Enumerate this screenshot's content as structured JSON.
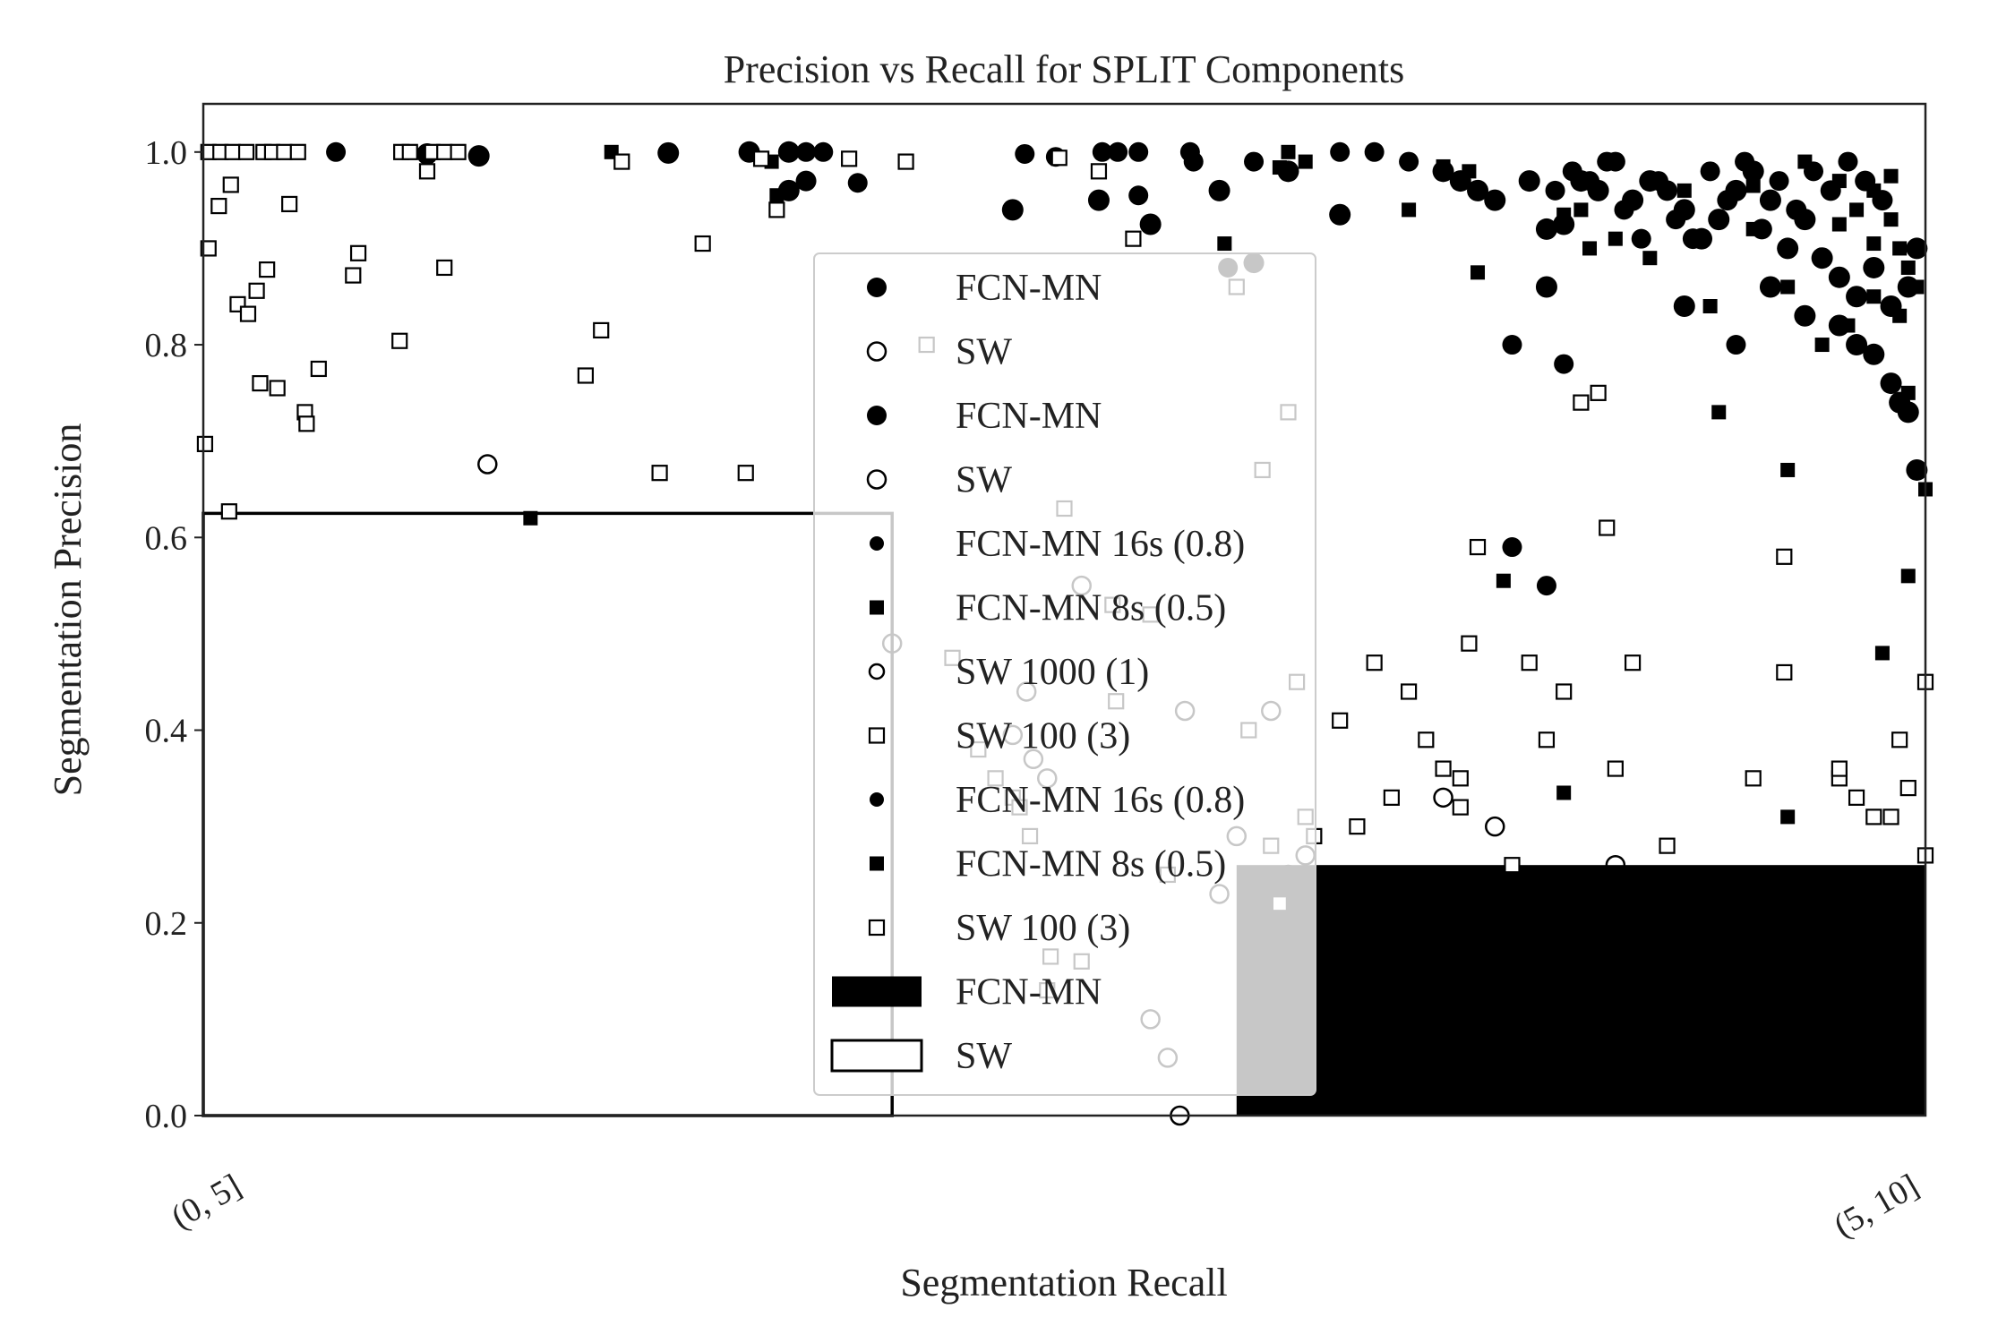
{
  "chart_data": {
    "type": "scatter",
    "title": "Precision vs Recall for SPLIT Components",
    "xlabel": "Segmentation Recall",
    "ylabel": "Segmentation Precision",
    "ylim": [
      0,
      1.05
    ],
    "yticks": [
      "0.0",
      "0.2",
      "0.4",
      "0.6",
      "0.8",
      "1.0"
    ],
    "categories": [
      "(0, 5]",
      "(5, 10]"
    ],
    "grid": false,
    "legend_placement": "center",
    "bars": [
      {
        "name": "FCN-MN",
        "color": "#000000",
        "filled": true,
        "x0": 0.6,
        "x1": 1.0,
        "value": 0.26
      },
      {
        "name": "SW",
        "color": "#000000",
        "filled": false,
        "x0": 0.0,
        "x1": 0.4,
        "value": 0.625
      }
    ],
    "legend": [
      {
        "label": "FCN-MN",
        "marker": "circle-filled-lg"
      },
      {
        "label": "SW",
        "marker": "circle-open"
      },
      {
        "label": "FCN-MN",
        "marker": "circle-filled-lg"
      },
      {
        "label": "SW",
        "marker": "circle-open"
      },
      {
        "label": "FCN-MN 16s (0.8)",
        "marker": "circle-filled-sm"
      },
      {
        "label": "FCN-MN 8s (0.5)",
        "marker": "square-filled"
      },
      {
        "label": "SW 1000 (1)",
        "marker": "circle-open-sm"
      },
      {
        "label": "SW 100 (3)",
        "marker": "square-open"
      },
      {
        "label": "FCN-MN 16s (0.8)",
        "marker": "circle-filled-sm"
      },
      {
        "label": "FCN-MN 8s (0.5)",
        "marker": "square-filled"
      },
      {
        "label": "SW 100 (3)",
        "marker": "square-open"
      },
      {
        "label": "FCN-MN",
        "marker": "patch-filled"
      },
      {
        "label": "SW",
        "marker": "patch-open"
      }
    ],
    "series": [
      {
        "name": "FCN-MN 16s (0.8)",
        "marker": "circle-filled",
        "points": [
          [
            0.077,
            1.0,
            0.8
          ],
          [
            0.13,
            0.998,
            1.0
          ],
          [
            0.16,
            0.996,
            1.0
          ],
          [
            0.27,
            0.999,
            1.0
          ],
          [
            0.317,
            1.0,
            1.0
          ],
          [
            0.34,
            1.0,
            1.0
          ],
          [
            0.35,
            1.0,
            0.8
          ],
          [
            0.36,
            1.0,
            0.8
          ],
          [
            0.34,
            0.96,
            1.0
          ],
          [
            0.35,
            0.97,
            0.9
          ],
          [
            0.38,
            0.968,
            0.8
          ],
          [
            0.477,
            0.998,
            0.8
          ],
          [
            0.495,
            0.995,
            0.8
          ],
          [
            0.522,
            1.0,
            0.8
          ],
          [
            0.531,
            1.0,
            0.8
          ],
          [
            0.543,
            1.0,
            0.8
          ],
          [
            0.47,
            0.94,
            1.0
          ],
          [
            0.52,
            0.95,
            1.0
          ],
          [
            0.55,
            0.925,
            1.0
          ],
          [
            0.543,
            0.955,
            0.8
          ],
          [
            0.573,
            1.0,
            0.8
          ],
          [
            0.575,
            0.99,
            0.8
          ],
          [
            0.59,
            0.96,
            1.0
          ],
          [
            0.61,
            0.99,
            0.8
          ],
          [
            0.63,
            0.98,
            1.0
          ],
          [
            0.66,
            0.935,
            1.0
          ],
          [
            0.66,
            1.0,
            0.8
          ],
          [
            0.68,
            1.0,
            0.8
          ],
          [
            0.7,
            0.99,
            0.8
          ],
          [
            0.72,
            0.98,
            1.0
          ],
          [
            0.73,
            0.97,
            1.0
          ],
          [
            0.74,
            0.96,
            1.0
          ],
          [
            0.75,
            0.95,
            1.0
          ],
          [
            0.77,
            0.97,
            1.0
          ],
          [
            0.78,
            0.92,
            1.0
          ],
          [
            0.79,
            0.925,
            1.0
          ],
          [
            0.8,
            0.97,
            1.0
          ],
          [
            0.81,
            0.96,
            1.0
          ],
          [
            0.82,
            0.99,
            0.8
          ],
          [
            0.83,
            0.95,
            1.0
          ],
          [
            0.84,
            0.97,
            1.0
          ],
          [
            0.85,
            0.96,
            0.9
          ],
          [
            0.86,
            0.94,
            1.0
          ],
          [
            0.87,
            0.91,
            1.0
          ],
          [
            0.88,
            0.93,
            1.0
          ],
          [
            0.89,
            0.96,
            1.0
          ],
          [
            0.9,
            0.98,
            1.0
          ],
          [
            0.91,
            0.95,
            1.0
          ],
          [
            0.92,
            0.9,
            1.0
          ],
          [
            0.93,
            0.93,
            1.0
          ],
          [
            0.94,
            0.89,
            1.0
          ],
          [
            0.95,
            0.87,
            1.0
          ],
          [
            0.96,
            0.85,
            1.0
          ],
          [
            0.97,
            0.88,
            1.0
          ],
          [
            0.98,
            0.84,
            1.0
          ],
          [
            0.99,
            0.86,
            1.0
          ],
          [
            0.995,
            0.9,
            1.0
          ],
          [
            0.91,
            0.86,
            1.0
          ],
          [
            0.93,
            0.83,
            1.0
          ],
          [
            0.95,
            0.82,
            1.0
          ],
          [
            0.96,
            0.8,
            1.0
          ],
          [
            0.97,
            0.79,
            1.0
          ],
          [
            0.98,
            0.76,
            1.0
          ],
          [
            0.985,
            0.74,
            1.0
          ],
          [
            0.99,
            0.73,
            1.0
          ],
          [
            0.89,
            0.8,
            0.8
          ],
          [
            0.86,
            0.84,
            1.0
          ],
          [
            0.78,
            0.86,
            1.0
          ],
          [
            0.76,
            0.8,
            0.8
          ],
          [
            0.79,
            0.78,
            0.8
          ],
          [
            0.975,
            0.95,
            0.9
          ],
          [
            0.965,
            0.97,
            0.9
          ],
          [
            0.955,
            0.99,
            0.8
          ],
          [
            0.945,
            0.96,
            0.9
          ],
          [
            0.935,
            0.98,
            0.8
          ],
          [
            0.925,
            0.94,
            0.9
          ],
          [
            0.915,
            0.97,
            0.8
          ],
          [
            0.905,
            0.92,
            0.9
          ],
          [
            0.895,
            0.99,
            0.8
          ],
          [
            0.885,
            0.95,
            0.9
          ],
          [
            0.875,
            0.98,
            0.8
          ],
          [
            0.865,
            0.91,
            0.9
          ],
          [
            0.855,
            0.93,
            0.8
          ],
          [
            0.845,
            0.97,
            0.8
          ],
          [
            0.835,
            0.91,
            0.8
          ],
          [
            0.825,
            0.94,
            0.8
          ],
          [
            0.815,
            0.99,
            0.8
          ],
          [
            0.805,
            0.97,
            0.8
          ],
          [
            0.795,
            0.98,
            0.8
          ],
          [
            0.785,
            0.96,
            0.8
          ],
          [
            0.995,
            0.67,
            1.0
          ],
          [
            0.76,
            0.59,
            0.8
          ],
          [
            0.78,
            0.55,
            0.8
          ],
          [
            0.595,
            0.88,
            0.8
          ],
          [
            0.61,
            0.885,
            0.9
          ]
        ]
      },
      {
        "name": "FCN-MN 8s (0.5)",
        "marker": "square-filled",
        "points": [
          [
            0.237,
            1.0
          ],
          [
            0.33,
            0.99
          ],
          [
            0.333,
            0.955
          ],
          [
            0.593,
            0.905
          ],
          [
            0.625,
            0.984
          ],
          [
            0.63,
            1.0
          ],
          [
            0.64,
            0.99
          ],
          [
            0.7,
            0.94
          ],
          [
            0.72,
            0.985
          ],
          [
            0.735,
            0.98
          ],
          [
            0.74,
            0.875
          ],
          [
            0.77,
            0.97
          ],
          [
            0.79,
            0.935
          ],
          [
            0.8,
            0.94
          ],
          [
            0.805,
            0.9
          ],
          [
            0.82,
            0.91
          ],
          [
            0.84,
            0.89
          ],
          [
            0.86,
            0.84
          ],
          [
            0.875,
            0.84
          ],
          [
            0.9,
            0.92
          ],
          [
            0.92,
            0.86
          ],
          [
            0.94,
            0.8
          ],
          [
            0.955,
            0.82
          ],
          [
            0.97,
            0.85
          ],
          [
            0.985,
            0.83
          ],
          [
            0.99,
            0.75
          ],
          [
            1.0,
            0.65
          ],
          [
            0.93,
            0.99
          ],
          [
            0.95,
            0.97
          ],
          [
            0.96,
            0.94
          ],
          [
            0.97,
            0.96
          ],
          [
            0.98,
            0.93
          ],
          [
            0.985,
            0.9
          ],
          [
            0.99,
            0.88
          ],
          [
            0.995,
            0.86
          ],
          [
            0.88,
            0.73
          ],
          [
            0.92,
            0.67
          ],
          [
            0.99,
            0.56
          ],
          [
            0.975,
            0.48
          ],
          [
            0.755,
            0.555
          ],
          [
            0.79,
            0.335
          ],
          [
            0.92,
            0.31
          ],
          [
            0.19,
            0.62
          ],
          [
            0.86,
            0.96
          ],
          [
            0.9,
            0.965
          ],
          [
            0.95,
            0.925
          ],
          [
            0.97,
            0.905
          ],
          [
            0.98,
            0.975
          ]
        ]
      },
      {
        "name": "SW 1000 (1)",
        "marker": "circle-open",
        "points": [
          [
            0.165,
            0.676
          ],
          [
            0.4,
            0.49
          ],
          [
            0.47,
            0.395
          ],
          [
            0.478,
            0.44
          ],
          [
            0.482,
            0.37
          ],
          [
            0.49,
            0.35
          ],
          [
            0.51,
            0.55
          ],
          [
            0.55,
            0.1
          ],
          [
            0.56,
            0.06
          ],
          [
            0.567,
            0.0
          ],
          [
            0.57,
            0.42
          ],
          [
            0.59,
            0.23
          ],
          [
            0.6,
            0.29
          ],
          [
            0.62,
            0.42
          ],
          [
            0.64,
            0.27
          ],
          [
            0.72,
            0.33
          ],
          [
            0.75,
            0.3
          ],
          [
            0.82,
            0.26
          ],
          [
            0.63,
            0.25
          ]
        ]
      },
      {
        "name": "SW 100 (3)",
        "marker": "square-open",
        "points": [
          [
            0.003,
            1.0
          ],
          [
            0.01,
            1.0
          ],
          [
            0.017,
            1.0
          ],
          [
            0.025,
            1.0
          ],
          [
            0.035,
            1.0
          ],
          [
            0.04,
            1.0
          ],
          [
            0.047,
            1.0
          ],
          [
            0.055,
            1.0
          ],
          [
            0.115,
            1.0
          ],
          [
            0.12,
            1.0
          ],
          [
            0.133,
            1.0
          ],
          [
            0.14,
            1.0
          ],
          [
            0.148,
            1.0
          ],
          [
            0.003,
            0.9
          ],
          [
            0.009,
            0.944
          ],
          [
            0.016,
            0.966
          ],
          [
            0.02,
            0.842
          ],
          [
            0.026,
            0.832
          ],
          [
            0.031,
            0.856
          ],
          [
            0.037,
            0.878
          ],
          [
            0.05,
            0.946
          ],
          [
            0.033,
            0.76
          ],
          [
            0.043,
            0.755
          ],
          [
            0.059,
            0.73
          ],
          [
            0.06,
            0.718
          ],
          [
            0.067,
            0.775
          ],
          [
            0.087,
            0.872
          ],
          [
            0.09,
            0.895
          ],
          [
            0.114,
            0.804
          ],
          [
            0.13,
            0.98
          ],
          [
            0.14,
            0.88
          ],
          [
            0.001,
            0.697
          ],
          [
            0.015,
            0.627
          ],
          [
            0.222,
            0.768
          ],
          [
            0.231,
            0.815
          ],
          [
            0.243,
            0.99
          ],
          [
            0.265,
            0.667
          ],
          [
            0.29,
            0.905
          ],
          [
            0.315,
            0.667
          ],
          [
            0.324,
            0.993
          ],
          [
            0.333,
            0.94
          ],
          [
            0.375,
            0.993
          ],
          [
            0.408,
            0.99
          ],
          [
            0.42,
            0.8
          ],
          [
            0.435,
            0.475
          ],
          [
            0.45,
            0.38
          ],
          [
            0.46,
            0.35
          ],
          [
            0.47,
            0.33
          ],
          [
            0.474,
            0.32
          ],
          [
            0.48,
            0.29
          ],
          [
            0.492,
            0.165
          ],
          [
            0.497,
            0.994
          ],
          [
            0.49,
            0.13
          ],
          [
            0.5,
            0.63
          ],
          [
            0.51,
            0.16
          ],
          [
            0.52,
            0.98
          ],
          [
            0.528,
            0.53
          ],
          [
            0.53,
            0.43
          ],
          [
            0.54,
            0.91
          ],
          [
            0.55,
            0.52
          ],
          [
            0.56,
            0.25
          ],
          [
            0.6,
            0.86
          ],
          [
            0.607,
            0.4
          ],
          [
            0.615,
            0.67
          ],
          [
            0.625,
            0.22
          ],
          [
            0.63,
            0.73
          ],
          [
            0.64,
            0.31
          ],
          [
            0.645,
            0.29
          ],
          [
            0.635,
            0.45
          ],
          [
            0.62,
            0.28
          ],
          [
            0.66,
            0.41
          ],
          [
            0.67,
            0.3
          ],
          [
            0.68,
            0.47
          ],
          [
            0.69,
            0.33
          ],
          [
            0.7,
            0.44
          ],
          [
            0.71,
            0.39
          ],
          [
            0.72,
            0.36
          ],
          [
            0.73,
            0.35
          ],
          [
            0.735,
            0.49
          ],
          [
            0.74,
            0.59
          ],
          [
            0.73,
            0.32
          ],
          [
            0.76,
            0.26
          ],
          [
            0.77,
            0.47
          ],
          [
            0.78,
            0.39
          ],
          [
            0.79,
            0.44
          ],
          [
            0.8,
            0.74
          ],
          [
            0.81,
            0.75
          ],
          [
            0.815,
            0.61
          ],
          [
            0.82,
            0.36
          ],
          [
            0.83,
            0.47
          ],
          [
            0.85,
            0.28
          ],
          [
            0.9,
            0.35
          ],
          [
            0.918,
            0.58
          ],
          [
            0.918,
            0.46
          ],
          [
            0.95,
            0.35
          ],
          [
            0.96,
            0.33
          ],
          [
            0.97,
            0.31
          ],
          [
            0.98,
            0.31
          ],
          [
            0.985,
            0.39
          ],
          [
            0.99,
            0.34
          ],
          [
            1.0,
            0.45
          ],
          [
            1.0,
            0.27
          ],
          [
            0.95,
            0.36
          ]
        ]
      }
    ]
  }
}
